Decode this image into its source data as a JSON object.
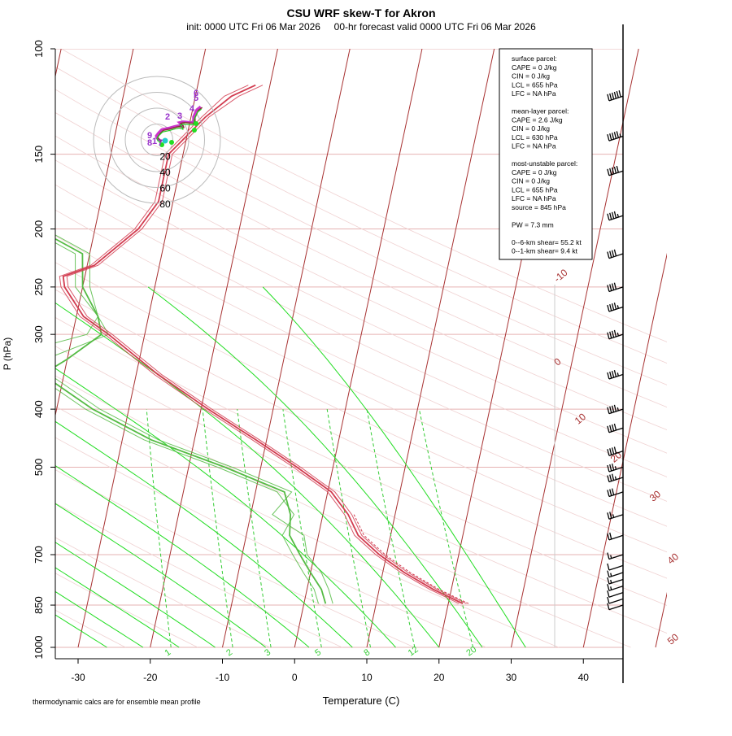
{
  "header": {
    "title": "CSU WRF skew-T for Akron",
    "subtitle": "init: 0000 UTC Fri 06 Mar 2026     00-hr forecast valid 0000 UTC Fri 06 Mar 2026"
  },
  "footer": {
    "note": "thermodynamic calcs are for ensemble mean profile"
  },
  "info_box": {
    "lines": [
      "surface parcel:",
      "CAPE = 0 J/kg",
      "CIN = 0 J/kg",
      "LCL = 655 hPa",
      "LFC = NA hPa",
      "",
      "mean-layer parcel:",
      "CAPE = 2.6 J/kg",
      "CIN = 0 J/kg",
      "LCL = 630 hPa",
      "LFC = NA hPa",
      "",
      "most-unstable parcel:",
      "CAPE = 0 J/kg",
      "CIN = 0 J/kg",
      "LCL = 655 hPa",
      "LFC = NA hPa",
      "source = 845 hPa",
      "",
      "PW =  7.3 mm",
      "",
      "0--6-km shear= 55.2 kt",
      "0--1-km shear= 9.4 kt"
    ]
  },
  "colors": {
    "isotherm": "#a83232",
    "isobar_grid": "#e6b3b3",
    "moist_adiabat": "#22dd22",
    "mixing_ratio": "#33cc33",
    "temperature": "#d23c50",
    "dewpoint": "#55bb44",
    "wind_barb": "#000000"
  },
  "chart_data": {
    "type": "skew-t",
    "xlabel": "Temperature (C)",
    "ylabel": "P (hPa)",
    "xlim": [
      -33,
      47
    ],
    "ylim": [
      1000,
      100
    ],
    "x_ticks": [
      -30,
      -20,
      -10,
      0,
      10,
      20,
      30,
      40
    ],
    "p_ticks": [
      1000,
      850,
      700,
      500,
      400,
      300,
      250,
      200,
      150,
      100
    ],
    "isotherm_labels": [
      -10,
      0,
      10,
      20,
      30,
      40,
      50
    ],
    "mixing_ratio_labels": [
      "1",
      "2",
      "3",
      "5",
      "8",
      "12",
      "20"
    ],
    "mixing_ratios_gkg": [
      1,
      2,
      3,
      5,
      8,
      12,
      20
    ],
    "moist_adiabat_start_T": [
      -26,
      -21,
      -16,
      -11,
      -4,
      2,
      8,
      14,
      20,
      26,
      32
    ],
    "temperature_profile": {
      "p": [
        845,
        800,
        750,
        700,
        650,
        600,
        550,
        500,
        450,
        400,
        350,
        300,
        280,
        250,
        240,
        230,
        200,
        180,
        150,
        130,
        120,
        115
      ],
      "t": [
        22,
        17.5,
        13,
        9,
        5.5,
        3.5,
        0.5,
        -5,
        -11.5,
        -19,
        -27,
        -35,
        -39,
        -42.5,
        -43,
        -39,
        -34,
        -32,
        -32,
        -28,
        -25,
        -22
      ]
    },
    "temperature_members": [
      {
        "p": [
          845,
          800,
          750,
          700,
          650,
          600,
          550,
          500,
          450,
          400,
          350,
          300,
          280,
          250,
          240,
          230,
          200,
          180,
          150,
          130,
          120,
          115
        ],
        "t": [
          22.5,
          18,
          13.5,
          9.5,
          6,
          4,
          1,
          -4.5,
          -11,
          -18.5,
          -26.5,
          -34.5,
          -38.5,
          -42,
          -42.5,
          -38.5,
          -33.5,
          -31.5,
          -31.5,
          -27.5,
          -24,
          -21
        ]
      },
      {
        "p": [
          845,
          800,
          750,
          700,
          650,
          600,
          550,
          500,
          450,
          400,
          350,
          300,
          280,
          250,
          240,
          230,
          200,
          180,
          150,
          130,
          120,
          115
        ],
        "t": [
          21.5,
          17,
          12.5,
          8.5,
          5,
          3,
          0,
          -5.5,
          -12,
          -19.5,
          -27.5,
          -35.5,
          -39.5,
          -43,
          -43.5,
          -39.5,
          -34.5,
          -32.5,
          -32.5,
          -28.5,
          -26,
          -23
        ]
      }
    ],
    "dewpoint_profile": {
      "p": [
        845,
        800,
        750,
        700,
        650,
        600,
        550,
        500,
        450,
        400,
        350,
        330,
        300,
        280,
        250,
        220,
        200,
        180,
        160
      ],
      "td": [
        3,
        2,
        0,
        -2,
        -4,
        -4.5,
        -6,
        -15,
        -26,
        -35,
        -43,
        -40,
        -36,
        -37,
        -40,
        -41,
        -48,
        -53,
        -50
      ]
    },
    "dewpoint_members": [
      {
        "p": [
          845,
          800,
          750,
          700,
          650,
          600,
          550,
          500,
          450,
          400,
          350,
          330,
          300,
          280,
          250,
          220,
          200,
          180
        ],
        "td": [
          4,
          3,
          1.5,
          -1,
          -2,
          -7,
          -5,
          -14,
          -25,
          -34,
          -42,
          -50,
          -38,
          -37,
          -39,
          -40,
          -47,
          -53
        ]
      },
      {
        "p": [
          845,
          800,
          750,
          700,
          650,
          600,
          550,
          500,
          450,
          400,
          350,
          330,
          300,
          280,
          250,
          220,
          200,
          180
        ],
        "td": [
          2,
          1,
          -1,
          -3,
          -5,
          -4,
          -7,
          -16,
          -27,
          -36,
          -44,
          -43,
          -35,
          -37,
          -41,
          -42,
          -49,
          -53
        ]
      }
    ],
    "wind_barbs": [
      {
        "p": 850,
        "speed_kt": 10
      },
      {
        "p": 830,
        "speed_kt": 10
      },
      {
        "p": 810,
        "speed_kt": 10
      },
      {
        "p": 790,
        "speed_kt": 15
      },
      {
        "p": 770,
        "speed_kt": 15
      },
      {
        "p": 750,
        "speed_kt": 15
      },
      {
        "p": 730,
        "speed_kt": 10
      },
      {
        "p": 700,
        "speed_kt": 15
      },
      {
        "p": 650,
        "speed_kt": 20
      },
      {
        "p": 600,
        "speed_kt": 25
      },
      {
        "p": 550,
        "speed_kt": 30
      },
      {
        "p": 520,
        "speed_kt": 35
      },
      {
        "p": 500,
        "speed_kt": 35
      },
      {
        "p": 470,
        "speed_kt": 40
      },
      {
        "p": 430,
        "speed_kt": 40
      },
      {
        "p": 400,
        "speed_kt": 45
      },
      {
        "p": 350,
        "speed_kt": 45
      },
      {
        "p": 300,
        "speed_kt": 45
      },
      {
        "p": 270,
        "speed_kt": 45
      },
      {
        "p": 250,
        "speed_kt": 40
      },
      {
        "p": 220,
        "speed_kt": 40
      },
      {
        "p": 190,
        "speed_kt": 45
      },
      {
        "p": 160,
        "speed_kt": 50
      },
      {
        "p": 140,
        "speed_kt": 55
      },
      {
        "p": 120,
        "speed_kt": 60
      }
    ],
    "hodograph": {
      "ring_labels": [
        "20",
        "40",
        "60",
        "80"
      ],
      "ring_speeds_kt": [
        20,
        40,
        60,
        80
      ],
      "point_labels": [
        "1",
        "2",
        "3",
        "4",
        "5",
        "6",
        "7",
        "8",
        "9"
      ],
      "u": [
        2,
        3,
        2,
        0,
        -1,
        2,
        6,
        15,
        22,
        27,
        30,
        31,
        32,
        31,
        28,
        33,
        44,
        46,
        46,
        50,
        55
      ],
      "v": [
        -1,
        0,
        1,
        2,
        5,
        9,
        13,
        15,
        17,
        18,
        17,
        17,
        16,
        19,
        22,
        23,
        22,
        24,
        29,
        38,
        42
      ]
    }
  }
}
